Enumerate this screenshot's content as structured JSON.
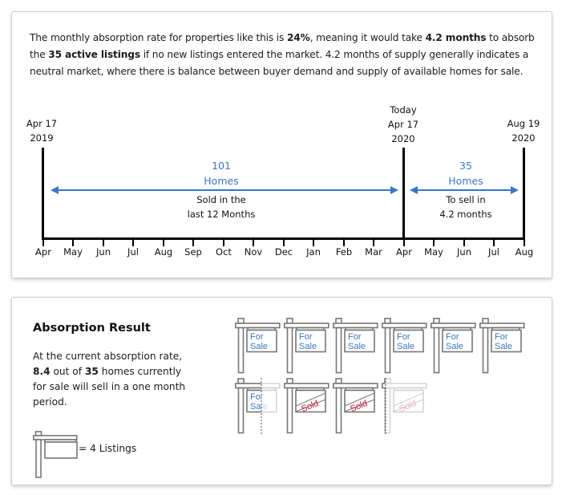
{
  "summary": {
    "p1": "The monthly absorption rate for properties like this is ",
    "rate": "24%",
    "p2": ", meaning it would take ",
    "months": "4.2 months",
    "p3": " to absorb the ",
    "listings": "35 active listings",
    "p4": " if no new listings entered the market. 4.2 months of supply generally indicates a neutral market, where there is balance between buyer demand and supply of available homes for sale."
  },
  "timeline": {
    "start": {
      "line1": "Apr 17",
      "line2": "2019"
    },
    "today": {
      "line0": "Today",
      "line1": "Apr 17",
      "line2": "2020"
    },
    "end": {
      "line1": "Aug 19",
      "line2": "2020"
    },
    "sold": {
      "count": "101",
      "unit": "Homes",
      "desc1": "Sold in the",
      "desc2": "last 12 Months"
    },
    "forsale": {
      "count": "35",
      "unit": "Homes",
      "desc1": "To sell in",
      "desc2": "4.2 months"
    },
    "months": [
      "Apr",
      "May",
      "Jun",
      "Jul",
      "Aug",
      "Sep",
      "Oct",
      "Nov",
      "Dec",
      "Jan",
      "Feb",
      "Mar",
      "Apr",
      "May",
      "Jun",
      "Jul",
      "Aug"
    ],
    "accent_color": "#3a78c3"
  },
  "result": {
    "title": "Absorption Result",
    "t1": "At the current absorption rate, ",
    "sold_value": "8.4",
    "t2": " out of ",
    "total": "35",
    "t3": " homes currently for sale will sell in a one month period.",
    "legend": "= 4 Listings",
    "sign_text_for": "For",
    "sign_text_sale": "Sale",
    "sign_text_sold": "Sold",
    "signs_row1": [
      "for-sale",
      "for-sale",
      "for-sale",
      "for-sale",
      "for-sale",
      "for-sale"
    ],
    "signs_row2": [
      "partial-for-sale",
      "sold",
      "sold",
      "partial-sold"
    ],
    "sold_color": "#c8102e"
  }
}
